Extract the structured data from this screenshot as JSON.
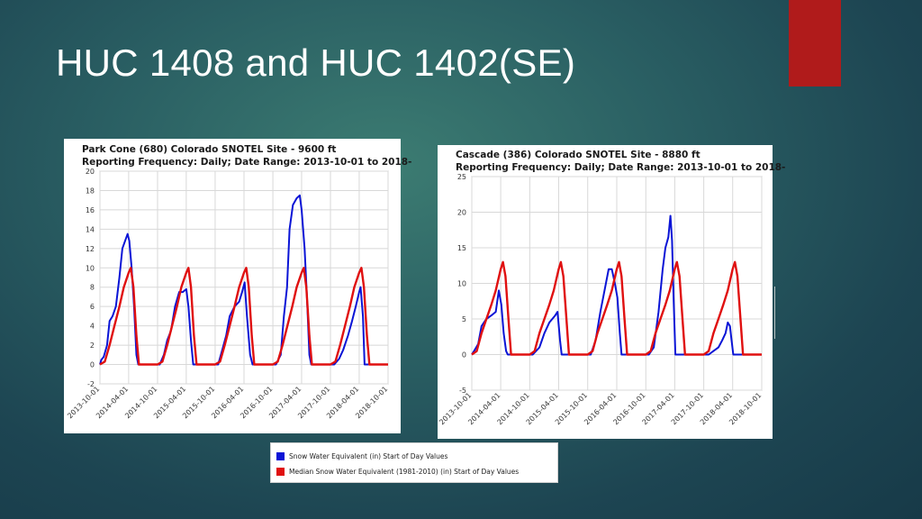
{
  "slide": {
    "title": "HUC 1408 and HUC 1402(SE)"
  },
  "legend": {
    "items": [
      {
        "label": "Snow Water Equivalent (in) Start of Day Values",
        "color": "#0a14d6"
      },
      {
        "label": "Median Snow Water Equivalent (1981-2010) (in) Start of Day Values",
        "color": "#e01010"
      }
    ]
  },
  "chart_data": [
    {
      "type": "line",
      "title": "Park Cone (680) Colorado SNOTEL Site - 9600 ft",
      "subtitle": "Reporting Frequency: Daily; Date Range: 2013-10-01 to 2018-",
      "xlabel": "",
      "ylabel": "",
      "ylim": [
        -2,
        20
      ],
      "yticks": [
        -2,
        0,
        2,
        4,
        6,
        8,
        10,
        12,
        14,
        16,
        18,
        20
      ],
      "xlim": [
        "2013-10-01",
        "2018-10-01"
      ],
      "xticks": [
        "2013-10-01",
        "2014-04-01",
        "2014-10-01",
        "2015-04-01",
        "2015-10-01",
        "2016-04-01",
        "2016-10-01",
        "2017-04-01",
        "2017-10-01",
        "2018-04-01",
        "2018-10-01"
      ],
      "grid": true,
      "series": [
        {
          "color": "#0a14d6",
          "points": [
            [
              "2013-10-01",
              0
            ],
            [
              "2013-10-10",
              0.5
            ],
            [
              "2013-10-25",
              0.8
            ],
            [
              "2013-11-15",
              2
            ],
            [
              "2013-12-01",
              4.5
            ],
            [
              "2013-12-20",
              5
            ],
            [
              "2014-01-10",
              6
            ],
            [
              "2014-02-01",
              9
            ],
            [
              "2014-02-20",
              12
            ],
            [
              "2014-03-10",
              12.8
            ],
            [
              "2014-03-25",
              13.5
            ],
            [
              "2014-04-05",
              12.8
            ],
            [
              "2014-04-20",
              10
            ],
            [
              "2014-05-05",
              6
            ],
            [
              "2014-05-20",
              1
            ],
            [
              "2014-06-01",
              0
            ],
            [
              "2014-10-15",
              0
            ],
            [
              "2014-11-10",
              1
            ],
            [
              "2014-12-01",
              2.5
            ],
            [
              "2014-12-25",
              3.5
            ],
            [
              "2015-01-20",
              6
            ],
            [
              "2015-02-15",
              7.5
            ],
            [
              "2015-03-10",
              7.5
            ],
            [
              "2015-04-01",
              7.8
            ],
            [
              "2015-04-15",
              6
            ],
            [
              "2015-05-01",
              2.5
            ],
            [
              "2015-05-15",
              0
            ],
            [
              "2015-10-20",
              0
            ],
            [
              "2015-11-15",
              1.5
            ],
            [
              "2015-12-10",
              3
            ],
            [
              "2016-01-01",
              5
            ],
            [
              "2016-02-01",
              6
            ],
            [
              "2016-03-01",
              6.5
            ],
            [
              "2016-03-20",
              7.5
            ],
            [
              "2016-04-05",
              8.5
            ],
            [
              "2016-04-20",
              5
            ],
            [
              "2016-05-10",
              1
            ],
            [
              "2016-05-25",
              0
            ],
            [
              "2016-10-20",
              0
            ],
            [
              "2016-11-20",
              1
            ],
            [
              "2016-12-10",
              5
            ],
            [
              "2016-12-30",
              8
            ],
            [
              "2017-01-15",
              14
            ],
            [
              "2017-02-05",
              16.5
            ],
            [
              "2017-03-01",
              17.2
            ],
            [
              "2017-03-20",
              17.5
            ],
            [
              "2017-04-01",
              16
            ],
            [
              "2017-04-20",
              12
            ],
            [
              "2017-05-05",
              7
            ],
            [
              "2017-05-20",
              1
            ],
            [
              "2017-06-01",
              0
            ],
            [
              "2017-10-25",
              0
            ],
            [
              "2017-11-25",
              0.6
            ],
            [
              "2017-12-20",
              1.5
            ],
            [
              "2018-01-20",
              3
            ],
            [
              "2018-02-15",
              4.5
            ],
            [
              "2018-03-10",
              6
            ],
            [
              "2018-04-01",
              7.5
            ],
            [
              "2018-04-10",
              8
            ],
            [
              "2018-04-25",
              5
            ],
            [
              "2018-05-05",
              0
            ],
            [
              "2018-10-01",
              0
            ]
          ]
        },
        {
          "color": "#e01010",
          "points": [
            [
              "2013-10-01",
              0
            ],
            [
              "2013-11-01",
              0.3
            ],
            [
              "2013-12-01",
              2
            ],
            [
              "2014-01-01",
              4
            ],
            [
              "2014-02-01",
              6
            ],
            [
              "2014-03-01",
              8
            ],
            [
              "2014-04-01",
              9.5
            ],
            [
              "2014-04-15",
              10
            ],
            [
              "2014-05-01",
              8
            ],
            [
              "2014-05-20",
              3
            ],
            [
              "2014-06-05",
              0
            ],
            [
              "2014-10-01",
              0
            ],
            [
              "2014-11-01",
              0.3
            ],
            [
              "2014-12-01",
              2
            ],
            [
              "2015-01-01",
              4
            ],
            [
              "2015-02-01",
              6
            ],
            [
              "2015-03-01",
              8
            ],
            [
              "2015-04-01",
              9.5
            ],
            [
              "2015-04-15",
              10
            ],
            [
              "2015-05-01",
              8
            ],
            [
              "2015-05-20",
              3
            ],
            [
              "2015-06-05",
              0
            ],
            [
              "2015-10-01",
              0
            ],
            [
              "2015-11-01",
              0.3
            ],
            [
              "2015-12-01",
              2
            ],
            [
              "2016-01-01",
              4
            ],
            [
              "2016-02-01",
              6
            ],
            [
              "2016-03-01",
              8
            ],
            [
              "2016-04-01",
              9.5
            ],
            [
              "2016-04-15",
              10
            ],
            [
              "2016-05-01",
              8
            ],
            [
              "2016-05-20",
              3
            ],
            [
              "2016-06-05",
              0
            ],
            [
              "2016-10-01",
              0
            ],
            [
              "2016-11-01",
              0.3
            ],
            [
              "2016-12-01",
              2
            ],
            [
              "2017-01-01",
              4
            ],
            [
              "2017-02-01",
              6
            ],
            [
              "2017-03-01",
              8
            ],
            [
              "2017-04-01",
              9.5
            ],
            [
              "2017-04-15",
              10
            ],
            [
              "2017-05-01",
              8
            ],
            [
              "2017-05-20",
              3
            ],
            [
              "2017-06-05",
              0
            ],
            [
              "2017-10-01",
              0
            ],
            [
              "2017-11-01",
              0.3
            ],
            [
              "2017-12-01",
              2
            ],
            [
              "2018-01-01",
              4
            ],
            [
              "2018-02-01",
              6
            ],
            [
              "2018-03-01",
              8
            ],
            [
              "2018-04-01",
              9.5
            ],
            [
              "2018-04-15",
              10
            ],
            [
              "2018-05-01",
              8
            ],
            [
              "2018-05-20",
              3
            ],
            [
              "2018-06-05",
              0
            ],
            [
              "2018-10-01",
              0
            ]
          ]
        }
      ]
    },
    {
      "type": "line",
      "title": "Cascade (386) Colorado SNOTEL Site - 8880 ft",
      "subtitle": "Reporting Frequency: Daily; Date Range: 2013-10-01 to 2018-",
      "xlabel": "",
      "ylabel": "",
      "ylim": [
        -5,
        25
      ],
      "yticks": [
        -5,
        0,
        5,
        10,
        15,
        20,
        25
      ],
      "xlim": [
        "2013-10-01",
        "2018-10-01"
      ],
      "xticks": [
        "2013-10-01",
        "2014-04-01",
        "2014-10-01",
        "2015-04-01",
        "2015-10-01",
        "2016-04-01",
        "2016-10-01",
        "2017-04-01",
        "2017-10-01",
        "2018-04-01",
        "2018-10-01"
      ],
      "grid": true,
      "series": [
        {
          "color": "#0a14d6",
          "points": [
            [
              "2013-10-01",
              0
            ],
            [
              "2013-10-15",
              0.5
            ],
            [
              "2013-11-10",
              1.5
            ],
            [
              "2013-12-01",
              4
            ],
            [
              "2014-01-01",
              5
            ],
            [
              "2014-02-01",
              5.5
            ],
            [
              "2014-03-01",
              6
            ],
            [
              "2014-03-20",
              9
            ],
            [
              "2014-04-05",
              7
            ],
            [
              "2014-04-20",
              3
            ],
            [
              "2014-05-05",
              0.5
            ],
            [
              "2014-05-15",
              0
            ],
            [
              "2014-10-20",
              0
            ],
            [
              "2014-12-01",
              1
            ],
            [
              "2015-01-01",
              3
            ],
            [
              "2015-02-01",
              4.5
            ],
            [
              "2015-02-20",
              5
            ],
            [
              "2015-03-10",
              5.5
            ],
            [
              "2015-03-25",
              6
            ],
            [
              "2015-04-10",
              2
            ],
            [
              "2015-04-20",
              0
            ],
            [
              "2015-10-20",
              0
            ],
            [
              "2015-11-20",
              2
            ],
            [
              "2015-12-20",
              6
            ],
            [
              "2016-01-15",
              9
            ],
            [
              "2016-02-10",
              12
            ],
            [
              "2016-03-01",
              12
            ],
            [
              "2016-03-20",
              10
            ],
            [
              "2016-04-05",
              8
            ],
            [
              "2016-04-20",
              3
            ],
            [
              "2016-05-01",
              0
            ],
            [
              "2016-10-20",
              0
            ],
            [
              "2016-11-20",
              1
            ],
            [
              "2016-12-20",
              6
            ],
            [
              "2017-01-15",
              12
            ],
            [
              "2017-02-01",
              15
            ],
            [
              "2017-02-20",
              16.5
            ],
            [
              "2017-03-05",
              19.5
            ],
            [
              "2017-03-15",
              16
            ],
            [
              "2017-03-25",
              8
            ],
            [
              "2017-04-05",
              0
            ],
            [
              "2017-11-01",
              0
            ],
            [
              "2017-12-01",
              0.5
            ],
            [
              "2018-01-01",
              1
            ],
            [
              "2018-01-25",
              2
            ],
            [
              "2018-02-15",
              3
            ],
            [
              "2018-03-01",
              4.5
            ],
            [
              "2018-03-15",
              4
            ],
            [
              "2018-03-25",
              2
            ],
            [
              "2018-04-05",
              0
            ],
            [
              "2018-10-01",
              0
            ]
          ]
        },
        {
          "color": "#e01010",
          "points": [
            [
              "2013-10-01",
              0
            ],
            [
              "2013-11-01",
              0.5
            ],
            [
              "2013-12-01",
              3
            ],
            [
              "2014-01-01",
              5
            ],
            [
              "2014-02-01",
              7
            ],
            [
              "2014-03-01",
              9
            ],
            [
              "2014-04-01",
              12
            ],
            [
              "2014-04-15",
              13
            ],
            [
              "2014-05-01",
              11
            ],
            [
              "2014-05-20",
              5
            ],
            [
              "2014-06-05",
              0
            ],
            [
              "2014-10-01",
              0
            ],
            [
              "2014-11-01",
              0.5
            ],
            [
              "2014-12-01",
              3
            ],
            [
              "2015-01-01",
              5
            ],
            [
              "2015-02-01",
              7
            ],
            [
              "2015-03-01",
              9
            ],
            [
              "2015-04-01",
              12
            ],
            [
              "2015-04-15",
              13
            ],
            [
              "2015-05-01",
              11
            ],
            [
              "2015-05-20",
              5
            ],
            [
              "2015-06-05",
              0
            ],
            [
              "2015-10-01",
              0
            ],
            [
              "2015-11-01",
              0.5
            ],
            [
              "2015-12-01",
              3
            ],
            [
              "2016-01-01",
              5
            ],
            [
              "2016-02-01",
              7
            ],
            [
              "2016-03-01",
              9
            ],
            [
              "2016-04-01",
              12
            ],
            [
              "2016-04-15",
              13
            ],
            [
              "2016-05-01",
              11
            ],
            [
              "2016-05-20",
              5
            ],
            [
              "2016-06-05",
              0
            ],
            [
              "2016-10-01",
              0
            ],
            [
              "2016-11-01",
              0.5
            ],
            [
              "2016-12-01",
              3
            ],
            [
              "2017-01-01",
              5
            ],
            [
              "2017-02-01",
              7
            ],
            [
              "2017-03-01",
              9
            ],
            [
              "2017-04-01",
              12
            ],
            [
              "2017-04-15",
              13
            ],
            [
              "2017-05-01",
              11
            ],
            [
              "2017-05-20",
              5
            ],
            [
              "2017-06-05",
              0
            ],
            [
              "2017-10-01",
              0
            ],
            [
              "2017-11-01",
              0.5
            ],
            [
              "2017-12-01",
              3
            ],
            [
              "2018-01-01",
              5
            ],
            [
              "2018-02-01",
              7
            ],
            [
              "2018-03-01",
              9
            ],
            [
              "2018-04-01",
              12
            ],
            [
              "2018-04-15",
              13
            ],
            [
              "2018-05-01",
              11
            ],
            [
              "2018-05-20",
              5
            ],
            [
              "2018-06-05",
              0
            ],
            [
              "2018-10-01",
              0
            ]
          ]
        }
      ]
    }
  ]
}
